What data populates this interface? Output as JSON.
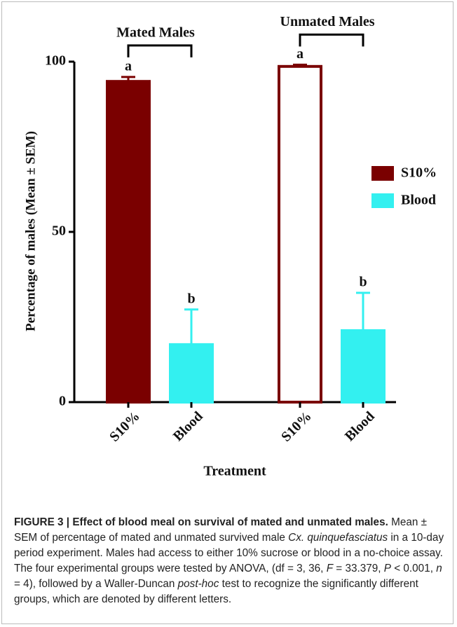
{
  "chart_data": {
    "type": "bar",
    "groups": [
      "Mated Males",
      "Unmated Males"
    ],
    "series": [
      {
        "name": "S10%",
        "color": "#7a0000",
        "values": [
          94.2,
          98.6
        ],
        "errors": [
          1.3,
          0.5
        ],
        "letters": [
          "a",
          "a"
        ],
        "filled": [
          true,
          false
        ]
      },
      {
        "name": "Blood",
        "color": "#33f0f0",
        "values": [
          16.9,
          21.0
        ],
        "errors": [
          10.3,
          11.1
        ],
        "letters": [
          "b",
          "b"
        ],
        "filled": [
          true,
          true
        ]
      }
    ],
    "ylabel": "Percentage of males (Mean ± SEM)",
    "xlabel": "Treatment",
    "ylim": [
      0,
      100
    ],
    "yticks": [
      0,
      50,
      100
    ],
    "legend": "right"
  },
  "caption": {
    "label": "FIGURE 3 | Effect of blood meal on survival of mated and unmated males.",
    "parts": [
      " Mean ± SEM of percentage of mated and unmated survived male ",
      "Cx. quinquefasciatus",
      " in a 10-day period experiment. Males had access to either 10% sucrose or blood in a no-choice assay. The four experimental groups were tested by ANOVA, (df = 3, 36, ",
      "F",
      " = 33.379, ",
      "P",
      " < 0.001, ",
      "n",
      " = 4), followed by a Waller-Duncan ",
      "post-hoc",
      " test to recognize the significantly different groups, which are denoted by different letters."
    ]
  }
}
